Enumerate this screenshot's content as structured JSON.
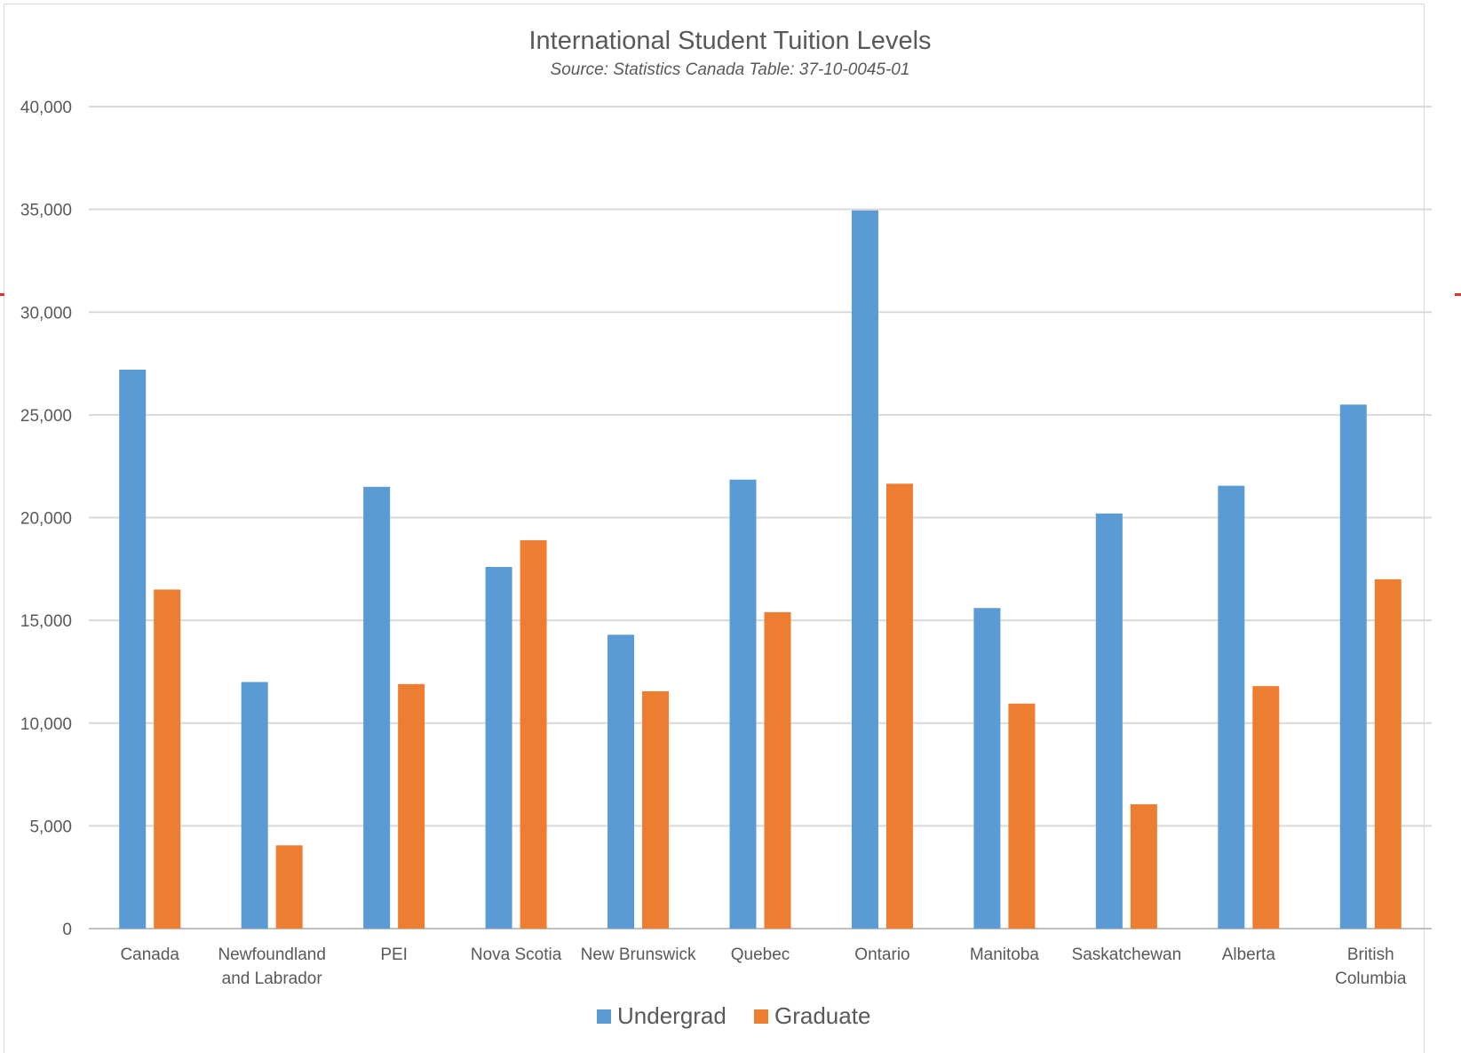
{
  "chart_data": {
    "type": "bar",
    "title": "International Student Tuition Levels",
    "subtitle": "Source: Statistics Canada Table: 37-10-0045-01",
    "xlabel": "",
    "ylabel": "",
    "ylim": [
      0,
      40000
    ],
    "yticks": [
      0,
      5000,
      10000,
      15000,
      20000,
      25000,
      30000,
      35000,
      40000
    ],
    "ytick_labels": [
      "0",
      "5,000",
      "10,000",
      "15,000",
      "20,000",
      "25,000",
      "30,000",
      "35,000",
      "40,000"
    ],
    "grid": true,
    "legend_position": "bottom",
    "categories": [
      [
        "Canada"
      ],
      [
        "Newfoundland",
        "and Labrador"
      ],
      [
        "PEI"
      ],
      [
        "Nova Scotia"
      ],
      [
        "New Brunswick"
      ],
      [
        "Quebec"
      ],
      [
        "Ontario"
      ],
      [
        "Manitoba"
      ],
      [
        "Saskatchewan"
      ],
      [
        "Alberta"
      ],
      [
        "British",
        "Columbia"
      ]
    ],
    "series": [
      {
        "name": "Undergrad",
        "color": "#5b9bd5",
        "values": [
          27200,
          12000,
          21500,
          17600,
          14300,
          21850,
          34950,
          15600,
          20200,
          21550,
          25500
        ]
      },
      {
        "name": "Graduate",
        "color": "#ed7d31",
        "values": [
          16500,
          4050,
          11900,
          18900,
          11550,
          15400,
          21650,
          10950,
          6050,
          11800,
          17000
        ]
      }
    ]
  }
}
